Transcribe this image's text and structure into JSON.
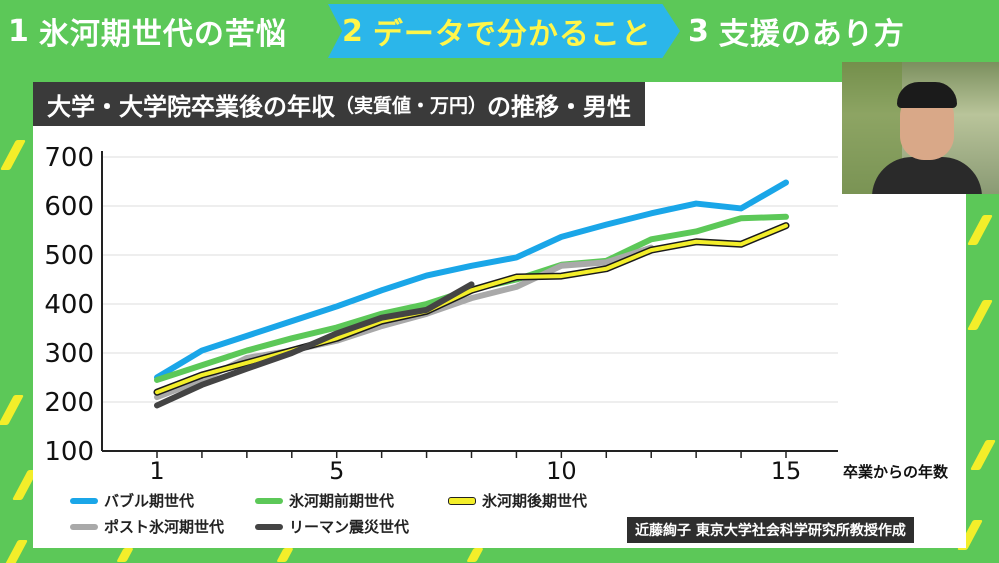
{
  "tabs": [
    {
      "num": "1",
      "label": "氷河期世代の苦悩"
    },
    {
      "num": "2",
      "label": "データで分かること"
    },
    {
      "num": "3",
      "label": "支援のあり方"
    }
  ],
  "chart_title_main": "大学・大学院卒業後の年収",
  "chart_title_paren": "（実質値・万円）",
  "chart_title_tail": "の推移・男性",
  "credit": "近藤絢子 東京大学社会科学研究所教授作成",
  "colors": {
    "bubble": "#1aa6e8",
    "hyoga_early": "#5cc858",
    "hyoga_late": "#f3ee2a",
    "post_hyoga": "#a9a9a9",
    "lehman": "#444444"
  },
  "chart_data": {
    "type": "line",
    "title": "大学・大学院卒業後の年収（実質値・万円）の推移・男性",
    "xlabel": "卒業からの年数",
    "ylabel": "",
    "xlim": [
      1,
      15
    ],
    "ylim": [
      100,
      700
    ],
    "x_ticks": [
      1,
      5,
      10,
      15
    ],
    "y_ticks": [
      100,
      200,
      300,
      400,
      500,
      600,
      700
    ],
    "grid": "horizontal",
    "legend": "bottom",
    "series": [
      {
        "name": "バブル期世代",
        "color": "#1aa6e8",
        "x": [
          1,
          2,
          3,
          4,
          5,
          6,
          7,
          8,
          9,
          10,
          11,
          12,
          13,
          14,
          15
        ],
        "y": [
          250,
          305,
          335,
          365,
          395,
          428,
          458,
          478,
          495,
          537,
          562,
          585,
          605,
          595,
          648
        ]
      },
      {
        "name": "氷河期前期世代",
        "color": "#5cc858",
        "x": [
          1,
          2,
          3,
          4,
          5,
          6,
          7,
          8,
          9,
          10,
          11,
          12,
          13,
          14,
          15
        ],
        "y": [
          245,
          275,
          305,
          330,
          352,
          380,
          400,
          430,
          450,
          480,
          488,
          532,
          548,
          575,
          578
        ]
      },
      {
        "name": "氷河期後期世代",
        "color": "#f3ee2a",
        "x": [
          1,
          2,
          3,
          4,
          5,
          6,
          7,
          8,
          9,
          10,
          11,
          12,
          13,
          14,
          15
        ],
        "y": [
          220,
          255,
          280,
          305,
          330,
          365,
          385,
          428,
          455,
          457,
          472,
          510,
          527,
          522,
          560
        ]
      },
      {
        "name": "ポスト氷河期世代",
        "color": "#a9a9a9",
        "x": [
          1,
          2,
          3,
          4,
          5,
          6,
          7,
          8,
          9,
          10,
          11,
          12
        ],
        "y": [
          210,
          245,
          290,
          305,
          325,
          355,
          380,
          412,
          435,
          478,
          485,
          515
        ]
      },
      {
        "name": "リーマン震災世代",
        "color": "#444444",
        "x": [
          1,
          2,
          3,
          4,
          5,
          6,
          7,
          8
        ],
        "y": [
          193,
          235,
          268,
          300,
          340,
          372,
          388,
          440
        ]
      }
    ]
  }
}
